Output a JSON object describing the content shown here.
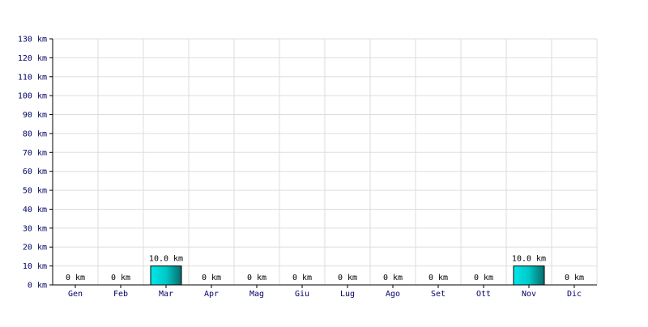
{
  "chart_data": {
    "type": "bar",
    "title": "",
    "xlabel": "",
    "ylabel": "",
    "categories": [
      "Gen",
      "Feb",
      "Mar",
      "Apr",
      "Mag",
      "Giu",
      "Lug",
      "Ago",
      "Set",
      "Ott",
      "Nov",
      "Dic"
    ],
    "values": [
      0,
      0,
      10.0,
      0,
      0,
      0,
      0,
      0,
      0,
      0,
      10.0,
      0
    ],
    "value_labels": [
      "0 km",
      "0 km",
      "10.0 km",
      "0 km",
      "0 km",
      "0 km",
      "0 km",
      "0 km",
      "0 km",
      "0 km",
      "10.0 km",
      "0 km"
    ],
    "unit": "km",
    "ylim": [
      0,
      130
    ],
    "yticks": [
      0,
      10,
      20,
      30,
      40,
      50,
      60,
      70,
      80,
      90,
      100,
      110,
      120,
      130
    ],
    "ytick_labels": [
      "0 km",
      "10 km",
      "20 km",
      "30 km",
      "40 km",
      "50 km",
      "60 km",
      "70 km",
      "80 km",
      "90 km",
      "100 km",
      "110 km",
      "120 km",
      "130 km"
    ],
    "grid": true,
    "legend": "none",
    "colors": {
      "bar_light": "#00e8e8",
      "bar_dark": "#0a6a6a",
      "bar_stroke": "#000000",
      "grid": "#dddddd",
      "axis": "#000000",
      "tick_text": "#000066",
      "label_text": "#000000"
    }
  }
}
